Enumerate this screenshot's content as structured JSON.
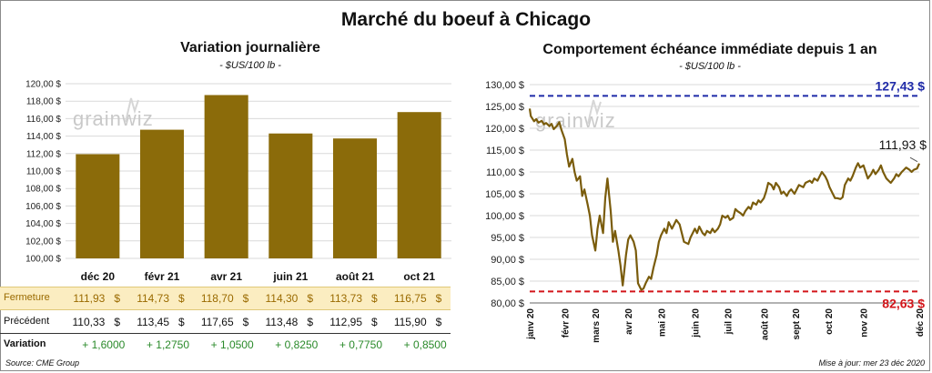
{
  "main_title": "Marché du boeuf à Chicago",
  "source": "Source: CME Group",
  "updated": "Mise à jour: mer 23 déc 2020",
  "watermark": "grainwiz",
  "colors": {
    "bar": "#8b6b0a",
    "line": "#7a5c0c",
    "high_line": "#1f2aa8",
    "low_line": "#d3151a",
    "fermeture_bg": "#fbedc1",
    "positive": "#2a8a2a"
  },
  "chart_data": [
    {
      "type": "bar",
      "title": "Variation journalière",
      "subtitle": "- $US/100 lb -",
      "categories": [
        "déc 20",
        "févr 21",
        "avr 21",
        "juin 21",
        "août 21",
        "oct 21"
      ],
      "values": [
        111.93,
        114.73,
        118.7,
        114.3,
        113.73,
        116.75
      ],
      "ylim": [
        100,
        120
      ],
      "yticks": [
        "100,00 $",
        "102,00 $",
        "104,00 $",
        "106,00 $",
        "108,00 $",
        "110,00 $",
        "112,00 $",
        "114,00 $",
        "116,00 $",
        "118,00 $",
        "120,00 $"
      ],
      "grid": true
    },
    {
      "type": "line",
      "title": "Comportement  échéance immédiate depuis 1 an",
      "subtitle": "- $US/100 lb -",
      "x_start": "2020-01-02",
      "x_end": "2020-12-23",
      "x_ticklabels": [
        "janv 20",
        "févr 20",
        "mars 20",
        "avr 20",
        "mai 20",
        "juin 20",
        "juil 20",
        "août 20",
        "sept 20",
        "oct 20",
        "nov 20",
        "déc 20"
      ],
      "ylim": [
        80,
        130
      ],
      "yticks": [
        "80,00 $",
        "85,00 $",
        "90,00 $",
        "95,00 $",
        "100,00 $",
        "105,00 $",
        "110,00 $",
        "115,00 $",
        "120,00 $",
        "125,00 $",
        "130,00 $"
      ],
      "high": 127.43,
      "high_label": "127,43 $",
      "low": 82.63,
      "low_label": "82,63 $",
      "last_label": "111,93 $",
      "series": [
        {
          "values": [
            [
              "2020-01-02",
              124.5
            ],
            [
              "2020-01-03",
              122.8
            ],
            [
              "2020-01-06",
              121.6
            ],
            [
              "2020-01-08",
              122.1
            ],
            [
              "2020-01-10",
              121.3
            ],
            [
              "2020-01-13",
              121.7
            ],
            [
              "2020-01-15",
              120.9
            ],
            [
              "2020-01-17",
              121.2
            ],
            [
              "2020-01-20",
              120.5
            ],
            [
              "2020-01-22",
              121.0
            ],
            [
              "2020-01-24",
              119.8
            ],
            [
              "2020-01-27",
              120.6
            ],
            [
              "2020-01-29",
              121.4
            ],
            [
              "2020-01-31",
              119.6
            ],
            [
              "2020-02-03",
              117.5
            ],
            [
              "2020-02-05",
              114.0
            ],
            [
              "2020-02-07",
              111.2
            ],
            [
              "2020-02-10",
              113.0
            ],
            [
              "2020-02-12",
              110.0
            ],
            [
              "2020-02-14",
              108.0
            ],
            [
              "2020-02-17",
              109.0
            ],
            [
              "2020-02-19",
              104.5
            ],
            [
              "2020-02-21",
              106.0
            ],
            [
              "2020-02-24",
              102.5
            ],
            [
              "2020-02-26",
              100.0
            ],
            [
              "2020-02-28",
              95.5
            ],
            [
              "2020-03-02",
              92.0
            ],
            [
              "2020-03-04",
              97.0
            ],
            [
              "2020-03-06",
              100.0
            ],
            [
              "2020-03-09",
              96.0
            ],
            [
              "2020-03-11",
              104.0
            ],
            [
              "2020-03-13",
              108.5
            ],
            [
              "2020-03-16",
              101.0
            ],
            [
              "2020-03-18",
              94.0
            ],
            [
              "2020-03-20",
              96.5
            ],
            [
              "2020-03-23",
              92.0
            ],
            [
              "2020-03-25",
              88.5
            ],
            [
              "2020-03-27",
              84.0
            ],
            [
              "2020-03-30",
              91.0
            ],
            [
              "2020-04-01",
              94.5
            ],
            [
              "2020-04-03",
              95.5
            ],
            [
              "2020-04-06",
              94.0
            ],
            [
              "2020-04-08",
              92.0
            ],
            [
              "2020-04-10",
              84.5
            ],
            [
              "2020-04-13",
              83.0
            ],
            [
              "2020-04-15",
              83.3
            ],
            [
              "2020-04-17",
              84.5
            ],
            [
              "2020-04-20",
              86.0
            ],
            [
              "2020-04-22",
              85.5
            ],
            [
              "2020-04-24",
              88.0
            ],
            [
              "2020-04-27",
              91.0
            ],
            [
              "2020-04-29",
              94.0
            ],
            [
              "2020-05-01",
              95.5
            ],
            [
              "2020-05-04",
              97.0
            ],
            [
              "2020-05-06",
              96.0
            ],
            [
              "2020-05-08",
              98.5
            ],
            [
              "2020-05-11",
              97.0
            ],
            [
              "2020-05-13",
              98.0
            ],
            [
              "2020-05-15",
              99.0
            ],
            [
              "2020-05-18",
              98.0
            ],
            [
              "2020-05-20",
              96.0
            ],
            [
              "2020-05-22",
              94.0
            ],
            [
              "2020-05-26",
              93.5
            ],
            [
              "2020-05-28",
              95.0
            ],
            [
              "2020-06-01",
              97.0
            ],
            [
              "2020-06-03",
              96.0
            ],
            [
              "2020-06-05",
              97.5
            ],
            [
              "2020-06-08",
              96.0
            ],
            [
              "2020-06-10",
              95.5
            ],
            [
              "2020-06-12",
              96.5
            ],
            [
              "2020-06-15",
              96.0
            ],
            [
              "2020-06-17",
              97.0
            ],
            [
              "2020-06-19",
              96.2
            ],
            [
              "2020-06-22",
              97.0
            ],
            [
              "2020-06-24",
              98.0
            ],
            [
              "2020-06-26",
              100.0
            ],
            [
              "2020-06-29",
              99.5
            ],
            [
              "2020-07-01",
              100.0
            ],
            [
              "2020-07-03",
              99.0
            ],
            [
              "2020-07-06",
              99.5
            ],
            [
              "2020-07-08",
              101.5
            ],
            [
              "2020-07-10",
              101.0
            ],
            [
              "2020-07-13",
              100.5
            ],
            [
              "2020-07-15",
              100.0
            ],
            [
              "2020-07-17",
              101.0
            ],
            [
              "2020-07-20",
              102.0
            ],
            [
              "2020-07-22",
              101.5
            ],
            [
              "2020-07-24",
              103.0
            ],
            [
              "2020-07-27",
              102.5
            ],
            [
              "2020-07-29",
              103.5
            ],
            [
              "2020-07-31",
              103.0
            ],
            [
              "2020-08-03",
              104.0
            ],
            [
              "2020-08-05",
              105.5
            ],
            [
              "2020-08-07",
              107.5
            ],
            [
              "2020-08-10",
              107.0
            ],
            [
              "2020-08-12",
              106.0
            ],
            [
              "2020-08-14",
              107.5
            ],
            [
              "2020-08-17",
              106.5
            ],
            [
              "2020-08-19",
              105.0
            ],
            [
              "2020-08-21",
              105.5
            ],
            [
              "2020-08-24",
              104.5
            ],
            [
              "2020-08-26",
              105.5
            ],
            [
              "2020-08-28",
              106.0
            ],
            [
              "2020-08-31",
              105.0
            ],
            [
              "2020-09-02",
              106.0
            ],
            [
              "2020-09-04",
              107.0
            ],
            [
              "2020-09-08",
              106.5
            ],
            [
              "2020-09-10",
              107.5
            ],
            [
              "2020-09-14",
              108.0
            ],
            [
              "2020-09-16",
              107.5
            ],
            [
              "2020-09-18",
              108.5
            ],
            [
              "2020-09-21",
              108.0
            ],
            [
              "2020-09-23",
              109.0
            ],
            [
              "2020-09-25",
              110.0
            ],
            [
              "2020-09-28",
              109.0
            ],
            [
              "2020-09-30",
              108.0
            ],
            [
              "2020-10-02",
              106.5
            ],
            [
              "2020-10-05",
              105.0
            ],
            [
              "2020-10-07",
              104.0
            ],
            [
              "2020-10-09",
              104.0
            ],
            [
              "2020-10-12",
              103.8
            ],
            [
              "2020-10-14",
              104.2
            ],
            [
              "2020-10-16",
              107.0
            ],
            [
              "2020-10-19",
              108.5
            ],
            [
              "2020-10-21",
              108.0
            ],
            [
              "2020-10-23",
              109.0
            ],
            [
              "2020-10-26",
              111.0
            ],
            [
              "2020-10-28",
              112.0
            ],
            [
              "2020-10-30",
              111.0
            ],
            [
              "2020-11-02",
              111.5
            ],
            [
              "2020-11-04",
              110.0
            ],
            [
              "2020-11-06",
              108.5
            ],
            [
              "2020-11-09",
              109.5
            ],
            [
              "2020-11-11",
              110.5
            ],
            [
              "2020-11-13",
              109.5
            ],
            [
              "2020-11-16",
              110.5
            ],
            [
              "2020-11-18",
              111.5
            ],
            [
              "2020-11-20",
              110.0
            ],
            [
              "2020-11-23",
              108.5
            ],
            [
              "2020-11-25",
              108.0
            ],
            [
              "2020-11-27",
              107.5
            ],
            [
              "2020-11-30",
              108.5
            ],
            [
              "2020-12-02",
              109.5
            ],
            [
              "2020-12-04",
              109.0
            ],
            [
              "2020-12-07",
              110.0
            ],
            [
              "2020-12-09",
              110.5
            ],
            [
              "2020-12-11",
              111.0
            ],
            [
              "2020-12-14",
              110.5
            ],
            [
              "2020-12-16",
              110.0
            ],
            [
              "2020-12-18",
              110.5
            ],
            [
              "2020-12-21",
              110.8
            ],
            [
              "2020-12-23",
              111.93
            ]
          ]
        }
      ]
    }
  ],
  "table": {
    "months": [
      "déc 20",
      "févr 21",
      "avr 21",
      "juin 21",
      "août 21",
      "oct 21"
    ],
    "rows": [
      {
        "label": "Fermeture",
        "values": [
          "111,93",
          "114,73",
          "118,70",
          "114,30",
          "113,73",
          "116,75"
        ],
        "unit": "$"
      },
      {
        "label": "Précédent",
        "values": [
          "110,33",
          "113,45",
          "117,65",
          "113,48",
          "112,95",
          "115,90"
        ],
        "unit": "$"
      },
      {
        "label": "Variation",
        "values": [
          "+ 1,6000",
          "+ 1,2750",
          "+ 1,0500",
          "+ 0,8250",
          "+ 0,7750",
          "+ 0,8500"
        ],
        "unit": ""
      }
    ]
  }
}
